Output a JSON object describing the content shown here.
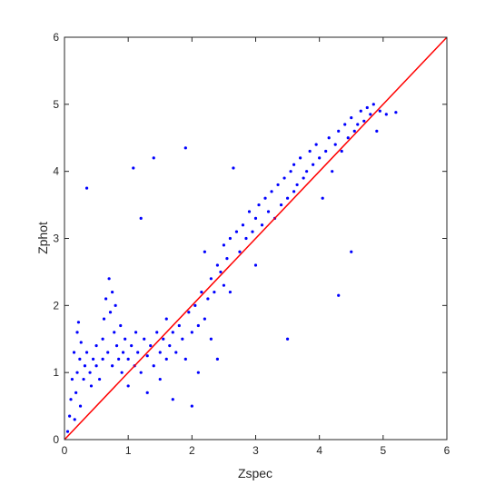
{
  "chart_data": {
    "type": "scatter",
    "title": "",
    "xlabel": "Zspec",
    "ylabel": "Zphot",
    "xlim": [
      0,
      6
    ],
    "ylim": [
      0,
      6
    ],
    "xticks": [
      0,
      1,
      2,
      3,
      4,
      5,
      6
    ],
    "yticks": [
      0,
      1,
      2,
      3,
      4,
      5,
      6
    ],
    "xtick_labels": [
      "0",
      "1",
      "2",
      "3",
      "4",
      "5",
      "6"
    ],
    "ytick_labels": [
      "0",
      "1",
      "2",
      "3",
      "4",
      "5",
      "6"
    ],
    "grid": false,
    "legend": "none",
    "colors": {
      "points": "#0000ff",
      "reference_line": "#ff0000",
      "axes": "#262626"
    },
    "series": [
      {
        "marker": "dot",
        "color": "#0000ff",
        "points": [
          [
            0.05,
            0.12
          ],
          [
            0.08,
            0.35
          ],
          [
            0.1,
            0.6
          ],
          [
            0.12,
            0.9
          ],
          [
            0.15,
            1.3
          ],
          [
            0.16,
            0.3
          ],
          [
            0.18,
            0.7
          ],
          [
            0.2,
            1.6
          ],
          [
            0.2,
            1.0
          ],
          [
            0.22,
            1.75
          ],
          [
            0.24,
            1.2
          ],
          [
            0.25,
            0.5
          ],
          [
            0.26,
            1.45
          ],
          [
            0.3,
            0.9
          ],
          [
            0.32,
            1.1
          ],
          [
            0.35,
            3.75
          ],
          [
            0.35,
            1.3
          ],
          [
            0.4,
            1.0
          ],
          [
            0.42,
            0.8
          ],
          [
            0.45,
            1.2
          ],
          [
            0.5,
            1.1
          ],
          [
            0.5,
            1.4
          ],
          [
            0.55,
            0.9
          ],
          [
            0.6,
            1.5
          ],
          [
            0.6,
            1.2
          ],
          [
            0.62,
            1.8
          ],
          [
            0.65,
            2.1
          ],
          [
            0.68,
            1.3
          ],
          [
            0.7,
            2.4
          ],
          [
            0.72,
            1.9
          ],
          [
            0.75,
            1.1
          ],
          [
            0.75,
            2.2
          ],
          [
            0.78,
            1.6
          ],
          [
            0.8,
            2.0
          ],
          [
            0.82,
            1.4
          ],
          [
            0.85,
            1.2
          ],
          [
            0.88,
            1.7
          ],
          [
            0.9,
            1.0
          ],
          [
            0.92,
            1.3
          ],
          [
            0.95,
            1.5
          ],
          [
            1.0,
            1.2
          ],
          [
            1.0,
            0.8
          ],
          [
            1.05,
            1.4
          ],
          [
            1.08,
            4.05
          ],
          [
            1.1,
            1.1
          ],
          [
            1.12,
            1.6
          ],
          [
            1.15,
            1.3
          ],
          [
            1.2,
            1.0
          ],
          [
            1.2,
            3.3
          ],
          [
            1.25,
            1.5
          ],
          [
            1.3,
            1.25
          ],
          [
            1.3,
            0.7
          ],
          [
            1.35,
            1.4
          ],
          [
            1.4,
            1.1
          ],
          [
            1.4,
            4.2
          ],
          [
            1.45,
            1.6
          ],
          [
            1.5,
            1.3
          ],
          [
            1.5,
            0.9
          ],
          [
            1.55,
            1.5
          ],
          [
            1.6,
            1.2
          ],
          [
            1.6,
            1.8
          ],
          [
            1.65,
            1.4
          ],
          [
            1.7,
            1.6
          ],
          [
            1.7,
            0.6
          ],
          [
            1.75,
            1.3
          ],
          [
            1.8,
            1.7
          ],
          [
            1.85,
            1.5
          ],
          [
            1.9,
            4.35
          ],
          [
            1.9,
            1.2
          ],
          [
            1.95,
            1.9
          ],
          [
            2.0,
            1.6
          ],
          [
            2.0,
            0.5
          ],
          [
            2.05,
            2.0
          ],
          [
            2.1,
            1.7
          ],
          [
            2.1,
            1.0
          ],
          [
            2.15,
            2.2
          ],
          [
            2.2,
            1.8
          ],
          [
            2.2,
            2.8
          ],
          [
            2.25,
            2.1
          ],
          [
            2.3,
            1.5
          ],
          [
            2.3,
            2.4
          ],
          [
            2.35,
            2.2
          ],
          [
            2.4,
            2.6
          ],
          [
            2.4,
            1.2
          ],
          [
            2.45,
            2.5
          ],
          [
            2.5,
            2.3
          ],
          [
            2.5,
            2.9
          ],
          [
            2.55,
            2.7
          ],
          [
            2.6,
            3.0
          ],
          [
            2.6,
            2.2
          ],
          [
            2.65,
            4.05
          ],
          [
            2.7,
            3.1
          ],
          [
            2.75,
            2.8
          ],
          [
            2.8,
            3.2
          ],
          [
            2.85,
            3.0
          ],
          [
            2.9,
            3.4
          ],
          [
            2.95,
            3.1
          ],
          [
            3.0,
            3.3
          ],
          [
            3.0,
            2.6
          ],
          [
            3.05,
            3.5
          ],
          [
            3.1,
            3.2
          ],
          [
            3.15,
            3.6
          ],
          [
            3.2,
            3.4
          ],
          [
            3.25,
            3.7
          ],
          [
            3.3,
            3.3
          ],
          [
            3.35,
            3.8
          ],
          [
            3.4,
            3.5
          ],
          [
            3.45,
            3.9
          ],
          [
            3.5,
            3.6
          ],
          [
            3.5,
            1.5
          ],
          [
            3.55,
            4.0
          ],
          [
            3.6,
            3.7
          ],
          [
            3.6,
            4.1
          ],
          [
            3.65,
            3.8
          ],
          [
            3.7,
            4.2
          ],
          [
            3.75,
            3.9
          ],
          [
            3.8,
            4.0
          ],
          [
            3.85,
            4.3
          ],
          [
            3.9,
            4.1
          ],
          [
            3.95,
            4.4
          ],
          [
            4.0,
            4.2
          ],
          [
            4.05,
            3.6
          ],
          [
            4.1,
            4.3
          ],
          [
            4.15,
            4.5
          ],
          [
            4.2,
            4.0
          ],
          [
            4.25,
            4.4
          ],
          [
            4.3,
            4.6
          ],
          [
            4.3,
            2.15
          ],
          [
            4.35,
            4.3
          ],
          [
            4.4,
            4.7
          ],
          [
            4.45,
            4.5
          ],
          [
            4.5,
            4.8
          ],
          [
            4.55,
            4.6
          ],
          [
            4.6,
            4.7
          ],
          [
            4.65,
            4.9
          ],
          [
            4.7,
            4.75
          ],
          [
            4.75,
            4.95
          ],
          [
            4.8,
            4.85
          ],
          [
            4.85,
            5.0
          ],
          [
            4.9,
            4.6
          ],
          [
            4.95,
            4.9
          ],
          [
            5.05,
            4.85
          ],
          [
            5.2,
            4.88
          ],
          [
            4.5,
            2.8
          ]
        ]
      }
    ],
    "reference_line": {
      "label": "",
      "color": "#ff0000",
      "from": [
        0,
        0
      ],
      "to": [
        6,
        6
      ]
    }
  }
}
